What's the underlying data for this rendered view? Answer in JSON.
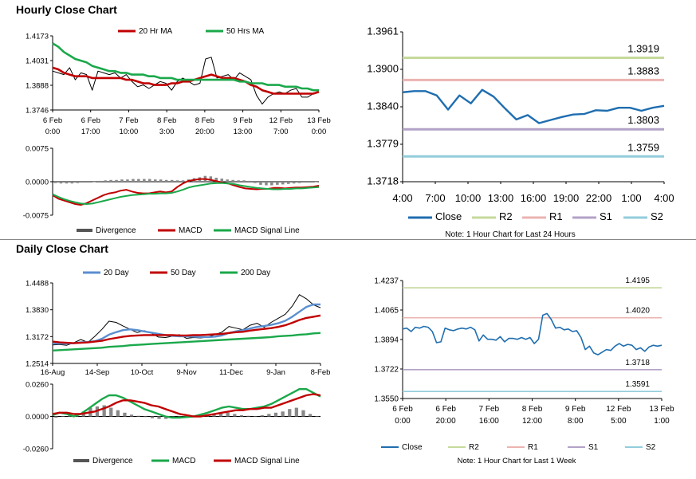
{
  "titles": {
    "hourly": "Hourly Close Chart",
    "daily": "Daily Close Chart"
  },
  "colors": {
    "close": "#1f6eb0",
    "r2": "#c5d99b",
    "r1": "#ebb3b0",
    "s1": "#b3a2c7",
    "s2": "#92cddc",
    "red": "#c00000",
    "green": "#1aa84a",
    "blue": "#5b8fd0",
    "black": "#000000",
    "divergence": "#888888"
  },
  "chart_data": [
    {
      "id": "hourly_price",
      "type": "line",
      "legend": [
        "20 Hr MA",
        "50 Hrs MA"
      ],
      "x_ticks": [
        "6 Feb|0:00",
        "6 Feb|17:00",
        "7 Feb|10:00",
        "8 Feb|3:00",
        "8 Feb|20:00",
        "9 Feb|13:00",
        "12 Feb|7:00",
        "13 Feb|0:00"
      ],
      "y_ticks": [
        "1.4173",
        "1.4031",
        "1.3888",
        "1.3746"
      ],
      "ylim": [
        1.3746,
        1.4173
      ],
      "series": [
        {
          "name": "",
          "color_key": "black",
          "values": [
            1.397,
            1.396,
            1.395,
            1.399,
            1.392,
            1.396,
            1.395,
            1.386,
            1.397,
            1.396,
            1.395,
            1.396,
            1.393,
            1.395,
            1.391,
            1.388,
            1.389,
            1.387,
            1.389,
            1.391,
            1.39,
            1.386,
            1.391,
            1.393,
            1.391,
            1.389,
            1.39,
            1.404,
            1.405,
            1.393,
            1.394,
            1.395,
            1.392,
            1.396,
            1.394,
            1.392,
            1.383,
            1.378,
            1.382,
            1.384,
            1.385,
            1.384,
            1.386,
            1.387,
            1.382,
            1.382,
            1.384,
            1.385
          ]
        },
        {
          "name": "20 Hr MA",
          "color_key": "red",
          "values": [
            1.399,
            1.398,
            1.396,
            1.395,
            1.394,
            1.394,
            1.394,
            1.393,
            1.393,
            1.393,
            1.393,
            1.393,
            1.393,
            1.392,
            1.392,
            1.391,
            1.39,
            1.39,
            1.389,
            1.389,
            1.389,
            1.39,
            1.39,
            1.391,
            1.391,
            1.392,
            1.393,
            1.394,
            1.395,
            1.394,
            1.393,
            1.393,
            1.393,
            1.392,
            1.391,
            1.389,
            1.388,
            1.386,
            1.385,
            1.384,
            1.384,
            1.384,
            1.384,
            1.384,
            1.384,
            1.384,
            1.384,
            1.385
          ]
        },
        {
          "name": "50 Hrs MA",
          "color_key": "green",
          "values": [
            1.413,
            1.411,
            1.408,
            1.406,
            1.404,
            1.403,
            1.402,
            1.4,
            1.399,
            1.398,
            1.397,
            1.397,
            1.396,
            1.396,
            1.395,
            1.395,
            1.395,
            1.394,
            1.394,
            1.393,
            1.393,
            1.393,
            1.392,
            1.392,
            1.392,
            1.392,
            1.392,
            1.392,
            1.392,
            1.392,
            1.392,
            1.392,
            1.392,
            1.391,
            1.391,
            1.39,
            1.39,
            1.39,
            1.389,
            1.389,
            1.389,
            1.388,
            1.388,
            1.388,
            1.387,
            1.387,
            1.386,
            1.386
          ]
        }
      ]
    },
    {
      "id": "hourly_macd",
      "type": "bar",
      "legend": [
        "Divergence",
        "MACD",
        "MACD Signal Line"
      ],
      "y_ticks": [
        "0.0075",
        "0.0000",
        "-0.0075"
      ],
      "ylim": [
        -0.0075,
        0.0075
      ],
      "divergence": [
        -0.0003,
        -0.0004,
        -0.0004,
        -0.0004,
        -0.0003,
        -0.0002,
        -0.0002,
        -0.0001,
        0.0002,
        0.0003,
        0.0004,
        0.0004,
        0.0005,
        0.0005,
        0.0006,
        0.0006,
        0.0006,
        0.0006,
        0.0005,
        0.0005,
        0.0004,
        0.0004,
        0.0003,
        0.0003,
        0.0005,
        0.0008,
        0.001,
        0.0013,
        0.0012,
        0.0009,
        0.0007,
        0.0005,
        0.0004,
        0.0003,
        0.0003,
        0.0002,
        -0.0003,
        -0.0007,
        -0.0008,
        -0.0008,
        -0.0007,
        -0.0006,
        -0.0005,
        -0.0004,
        -0.0003,
        -0.0002,
        -0.0002,
        -0.0001
      ],
      "series": [
        {
          "name": "MACD",
          "color_key": "red",
          "values": [
            -0.003,
            -0.0038,
            -0.0042,
            -0.0046,
            -0.005,
            -0.0052,
            -0.0048,
            -0.0042,
            -0.0036,
            -0.003,
            -0.0026,
            -0.0024,
            -0.002,
            -0.0018,
            -0.0022,
            -0.0025,
            -0.0026,
            -0.0026,
            -0.0024,
            -0.0022,
            -0.0024,
            -0.0022,
            -0.0012,
            -0.0004,
            0.0002,
            0.0004,
            0.0006,
            0.0006,
            0.0004,
            0.0001,
            -0.0002,
            -0.0004,
            -0.0008,
            -0.0012,
            -0.0015,
            -0.0016,
            -0.0017,
            -0.0016,
            -0.0016,
            -0.0014,
            -0.0014,
            -0.0015,
            -0.0014,
            -0.0013,
            -0.0013,
            -0.0012,
            -0.0011,
            -0.0009
          ]
        },
        {
          "name": "MACD Signal Line",
          "color_key": "green",
          "values": [
            -0.0028,
            -0.0034,
            -0.0039,
            -0.0043,
            -0.0046,
            -0.0049,
            -0.005,
            -0.0049,
            -0.0046,
            -0.0043,
            -0.004,
            -0.0037,
            -0.0034,
            -0.0032,
            -0.003,
            -0.0029,
            -0.0028,
            -0.0027,
            -0.0027,
            -0.0026,
            -0.0026,
            -0.0025,
            -0.0022,
            -0.0018,
            -0.0013,
            -0.001,
            -0.0008,
            -0.0006,
            -0.0004,
            -0.0003,
            -0.0003,
            -0.0004,
            -0.0005,
            -0.0008,
            -0.001,
            -0.0012,
            -0.0014,
            -0.0015,
            -0.0016,
            -0.0017,
            -0.0017,
            -0.0016,
            -0.0016,
            -0.0015,
            -0.0015,
            -0.0014,
            -0.0013,
            -0.0012
          ]
        }
      ]
    },
    {
      "id": "hourly_sr",
      "type": "line",
      "x_ticks": [
        "4:00",
        "7:00",
        "10:00",
        "13:00",
        "16:00",
        "19:00",
        "22:00",
        "1:00",
        "4:00"
      ],
      "y_ticks": [
        "1.3961",
        "1.3900",
        "1.3840",
        "1.3779",
        "1.3718"
      ],
      "ylim": [
        1.3718,
        1.3961
      ],
      "levels": [
        {
          "name": "R2",
          "value": 1.3919,
          "label": "1.3919",
          "color_key": "r2"
        },
        {
          "name": "R1",
          "value": 1.3883,
          "label": "1.3883",
          "color_key": "r1"
        },
        {
          "name": "S1",
          "value": 1.3803,
          "label": "1.3803",
          "color_key": "s1"
        },
        {
          "name": "S2",
          "value": 1.3759,
          "label": "1.3759",
          "color_key": "s2"
        }
      ],
      "close": [
        1.3863,
        1.3865,
        1.3865,
        1.3858,
        1.3835,
        1.3858,
        1.3845,
        1.3867,
        1.3856,
        1.3837,
        1.3819,
        1.3826,
        1.3813,
        1.3818,
        1.3823,
        1.3827,
        1.3828,
        1.3834,
        1.3833,
        1.3838,
        1.3838,
        1.3833,
        1.3838,
        1.3841
      ],
      "legend": [
        "Close",
        "R2",
        "R1",
        "S1",
        "S2"
      ],
      "note": "Note: 1 Hour Chart for Last 24 Hours"
    },
    {
      "id": "daily_price",
      "type": "line",
      "legend": [
        "20 Day",
        "50 Day",
        "200 Day"
      ],
      "x_ticks": [
        "16-Aug",
        "14-Sep",
        "10-Oct",
        "9-Nov",
        "11-Dec",
        "9-Jan",
        "8-Feb"
      ],
      "y_ticks": [
        "1.4488",
        "1.3830",
        "1.3172",
        "1.2514"
      ],
      "ylim": [
        1.2514,
        1.4488
      ],
      "series": [
        {
          "name": "",
          "color_key": "black",
          "values": [
            1.297,
            1.298,
            1.296,
            1.302,
            1.31,
            1.303,
            1.318,
            1.335,
            1.355,
            1.352,
            1.343,
            1.335,
            1.327,
            1.332,
            1.326,
            1.316,
            1.315,
            1.318,
            1.322,
            1.313,
            1.315,
            1.314,
            1.316,
            1.322,
            1.328,
            1.342,
            1.338,
            1.334,
            1.345,
            1.35,
            1.34,
            1.352,
            1.362,
            1.372,
            1.392,
            1.42,
            1.41,
            1.395,
            1.388
          ]
        },
        {
          "name": "20 Day",
          "color_key": "blue",
          "values": [
            1.3,
            1.3,
            1.3,
            1.301,
            1.303,
            1.304,
            1.306,
            1.312,
            1.322,
            1.328,
            1.333,
            1.335,
            1.333,
            1.33,
            1.327,
            1.324,
            1.321,
            1.319,
            1.318,
            1.318,
            1.317,
            1.316,
            1.316,
            1.317,
            1.32,
            1.326,
            1.33,
            1.333,
            1.337,
            1.341,
            1.343,
            1.346,
            1.35,
            1.356,
            1.366,
            1.378,
            1.39,
            1.396,
            1.396
          ]
        },
        {
          "name": "50 Day",
          "color_key": "red",
          "values": [
            1.305,
            1.303,
            1.302,
            1.301,
            1.302,
            1.303,
            1.305,
            1.307,
            1.311,
            1.314,
            1.317,
            1.319,
            1.32,
            1.321,
            1.321,
            1.321,
            1.321,
            1.321,
            1.32,
            1.32,
            1.321,
            1.321,
            1.322,
            1.323,
            1.324,
            1.326,
            1.328,
            1.329,
            1.332,
            1.334,
            1.336,
            1.338,
            1.341,
            1.345,
            1.351,
            1.358,
            1.363,
            1.366,
            1.369
          ]
        },
        {
          "name": "200 Day",
          "color_key": "green",
          "values": [
            1.283,
            1.284,
            1.285,
            1.286,
            1.287,
            1.288,
            1.289,
            1.29,
            1.292,
            1.293,
            1.294,
            1.296,
            1.297,
            1.298,
            1.299,
            1.3,
            1.301,
            1.302,
            1.303,
            1.304,
            1.305,
            1.306,
            1.307,
            1.308,
            1.309,
            1.31,
            1.311,
            1.312,
            1.313,
            1.314,
            1.315,
            1.316,
            1.318,
            1.319,
            1.32,
            1.322,
            1.323,
            1.325,
            1.326
          ]
        }
      ]
    },
    {
      "id": "daily_macd",
      "type": "bar",
      "legend": [
        "Divergence",
        "MACD",
        "MACD Signal Line"
      ],
      "y_ticks": [
        "0.0260",
        "0.0000",
        "-0.0260"
      ],
      "ylim": [
        -0.026,
        0.026
      ],
      "divergence": [
        -0.001,
        0.0,
        0.001,
        0.002,
        0.004,
        0.007,
        0.008,
        0.009,
        0.007,
        0.005,
        0.003,
        0.0015,
        0.0005,
        -0.0005,
        -0.0015,
        -0.002,
        -0.002,
        -0.0015,
        -0.001,
        -0.0005,
        0.0,
        0.001,
        0.0015,
        0.002,
        0.0025,
        0.003,
        0.002,
        0.001,
        0.0005,
        0.0,
        0.001,
        0.002,
        0.003,
        0.004,
        0.006,
        0.007,
        0.005,
        0.002,
        0.0
      ],
      "series": [
        {
          "name": "MACD",
          "color_key": "green",
          "values": [
            0.001,
            0.003,
            0.002,
            0.0,
            0.002,
            0.006,
            0.01,
            0.014,
            0.017,
            0.017,
            0.015,
            0.012,
            0.009,
            0.006,
            0.004,
            0.002,
            0.0,
            -0.001,
            -0.001,
            -0.0005,
            0.0,
            0.0015,
            0.003,
            0.005,
            0.007,
            0.008,
            0.007,
            0.006,
            0.006,
            0.007,
            0.008,
            0.01,
            0.013,
            0.016,
            0.019,
            0.022,
            0.022,
            0.019,
            0.016
          ]
        },
        {
          "name": "MACD Signal Line",
          "color_key": "red",
          "values": [
            0.002,
            0.003,
            0.003,
            0.002,
            0.002,
            0.003,
            0.004,
            0.006,
            0.008,
            0.011,
            0.013,
            0.013,
            0.012,
            0.011,
            0.009,
            0.008,
            0.006,
            0.004,
            0.002,
            0.001,
            0.0,
            0.0,
            0.001,
            0.002,
            0.003,
            0.004,
            0.005,
            0.005,
            0.006,
            0.006,
            0.007,
            0.007,
            0.009,
            0.011,
            0.013,
            0.015,
            0.017,
            0.018,
            0.017
          ]
        }
      ]
    },
    {
      "id": "daily_sr",
      "type": "line",
      "x_ticks": [
        "6 Feb|0:00",
        "6 Feb|20:00",
        "7 Feb|16:00",
        "8 Feb|12:00",
        "9 Feb|8:00",
        "12 Feb|5:00",
        "13 Feb|1:00"
      ],
      "y_ticks": [
        "1.4237",
        "1.4065",
        "1.3894",
        "1.3722",
        "1.3550"
      ],
      "ylim": [
        1.355,
        1.4237
      ],
      "levels": [
        {
          "name": "R2",
          "value": 1.4195,
          "label": "1.4195",
          "color_key": "r2"
        },
        {
          "name": "R1",
          "value": 1.402,
          "label": "1.4020",
          "color_key": "r1"
        },
        {
          "name": "S1",
          "value": 1.3718,
          "label": "1.3718",
          "color_key": "s1"
        },
        {
          "name": "S2",
          "value": 1.3591,
          "label": "1.3591",
          "color_key": "s2"
        }
      ],
      "close": [
        1.3955,
        1.396,
        1.394,
        1.3965,
        1.396,
        1.397,
        1.3965,
        1.394,
        1.3875,
        1.388,
        1.396,
        1.395,
        1.3945,
        1.3955,
        1.396,
        1.3955,
        1.3965,
        1.395,
        1.3885,
        1.392,
        1.3895,
        1.3895,
        1.389,
        1.391,
        1.388,
        1.39,
        1.39,
        1.3895,
        1.3905,
        1.3895,
        1.3905,
        1.387,
        1.3895,
        1.4035,
        1.4045,
        1.401,
        1.396,
        1.3965,
        1.395,
        1.3955,
        1.394,
        1.3945,
        1.3905,
        1.3835,
        1.3855,
        1.3815,
        1.3805,
        1.382,
        1.3835,
        1.383,
        1.3855,
        1.387,
        1.3855,
        1.3865,
        1.386,
        1.3835,
        1.3845,
        1.3825,
        1.385,
        1.386,
        1.3855,
        1.386
      ],
      "legend": [
        "Close",
        "R2",
        "R1",
        "S1",
        "S2"
      ],
      "note": "Note: 1 Hour Chart for Last 1 Week"
    }
  ]
}
